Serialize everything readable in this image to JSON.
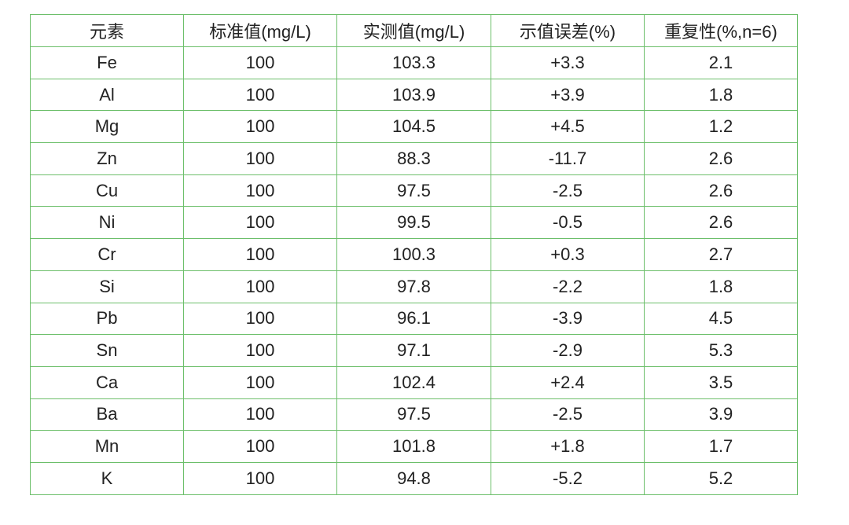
{
  "table": {
    "header": [
      "元素",
      "标准值(mg/L)",
      "实测值(mg/L)",
      "示值误差(%)",
      "重复性(%,n=6)"
    ],
    "rows": [
      [
        "Fe",
        "100",
        "103.3",
        "+3.3",
        "2.1"
      ],
      [
        "Al",
        "100",
        "103.9",
        "+3.9",
        "1.8"
      ],
      [
        "Mg",
        "100",
        "104.5",
        "+4.5",
        "1.2"
      ],
      [
        "Zn",
        "100",
        "88.3",
        "-11.7",
        "2.6"
      ],
      [
        "Cu",
        "100",
        "97.5",
        "-2.5",
        "2.6"
      ],
      [
        "Ni",
        "100",
        "99.5",
        "-0.5",
        "2.6"
      ],
      [
        "Cr",
        "100",
        "100.3",
        "+0.3",
        "2.7"
      ],
      [
        "Si",
        "100",
        "97.8",
        "-2.2",
        "1.8"
      ],
      [
        "Pb",
        "100",
        "96.1",
        "-3.9",
        "4.5"
      ],
      [
        "Sn",
        "100",
        "97.1",
        "-2.9",
        "5.3"
      ],
      [
        "Ca",
        "100",
        "102.4",
        "+2.4",
        "3.5"
      ],
      [
        "Ba",
        "100",
        "97.5",
        "-2.5",
        "3.9"
      ],
      [
        "Mn",
        "100",
        "101.8",
        "+1.8",
        "1.7"
      ],
      [
        "K",
        "100",
        "94.8",
        "-5.2",
        "5.2"
      ]
    ]
  }
}
